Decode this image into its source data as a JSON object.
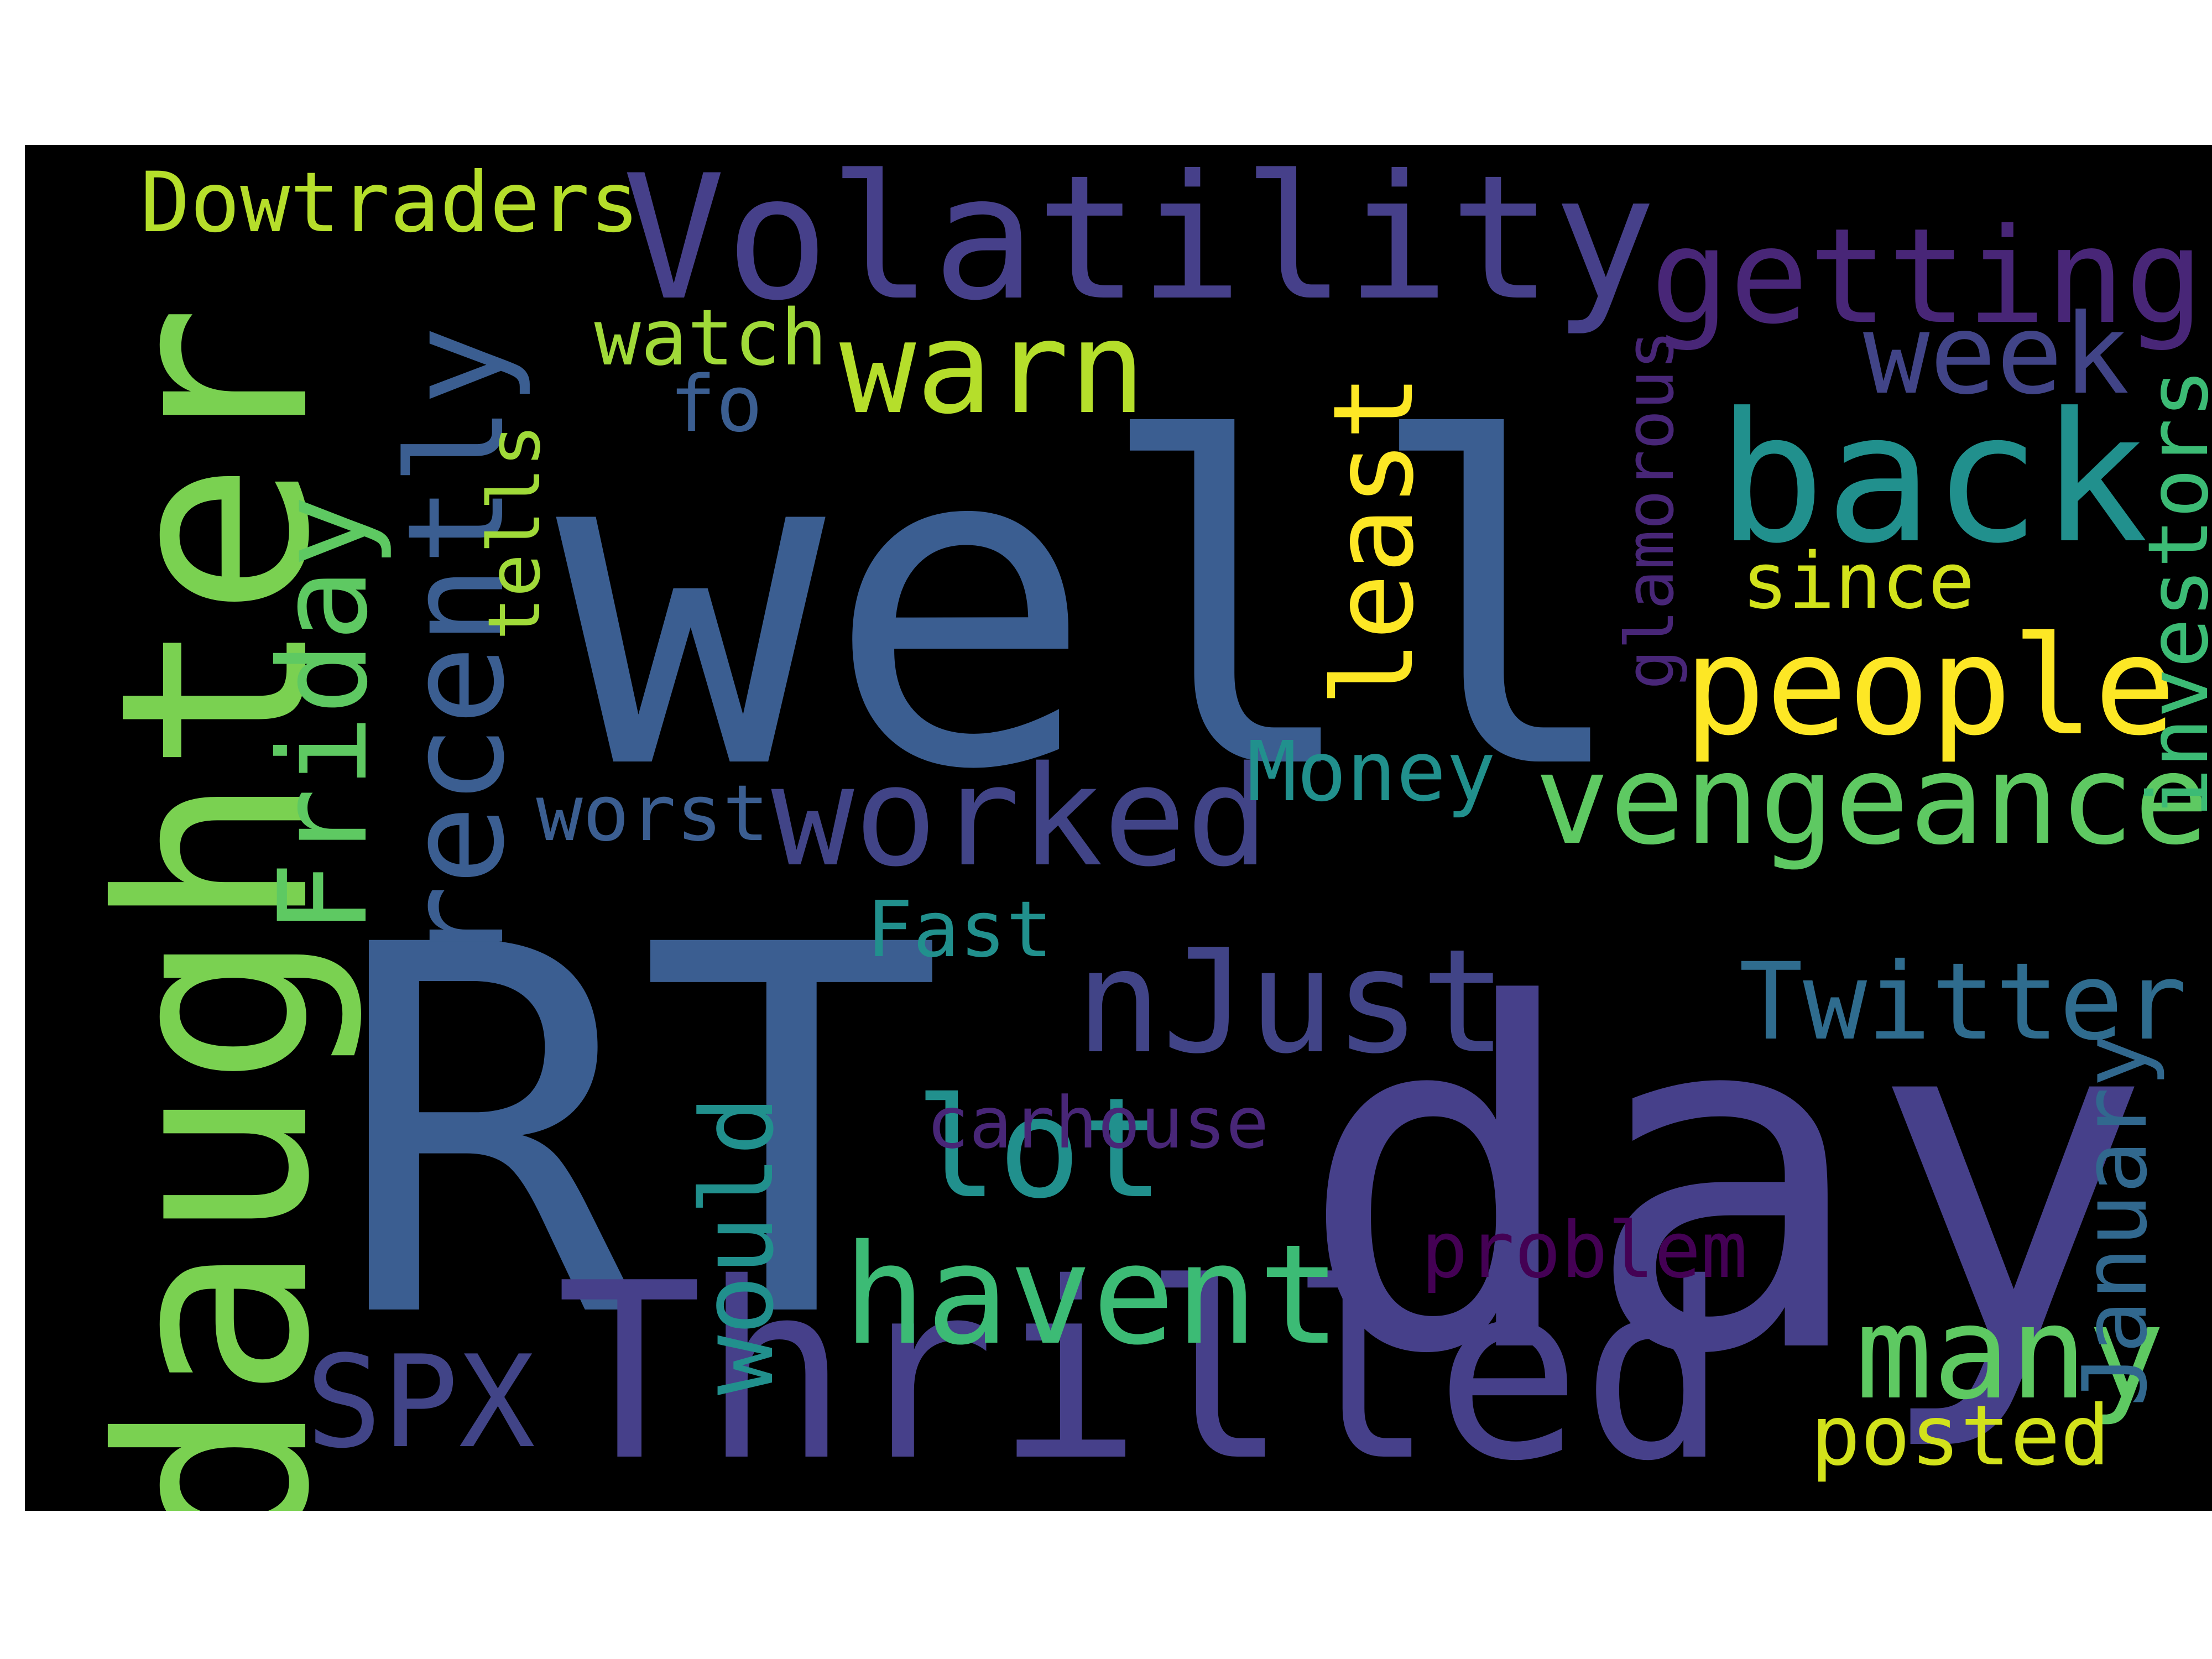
{
  "words": [
    {
      "key": "well",
      "text": "well",
      "color": "#3b5e91",
      "rotated": false
    },
    {
      "key": "RT",
      "text": "RT",
      "color": "#3b5e91",
      "rotated": false
    },
    {
      "key": "day",
      "text": "day",
      "color": "#46408a",
      "rotated": false
    },
    {
      "key": "Thrilled",
      "text": "Thrilled",
      "color": "#46408a",
      "rotated": false
    },
    {
      "key": "daughter",
      "text": "daughter",
      "color": "#7ad151",
      "rotated": true
    },
    {
      "key": "Volatility",
      "text": "Volatility",
      "color": "#46408a",
      "rotated": false
    },
    {
      "key": "getting",
      "text": "getting",
      "color": "#482677",
      "rotated": false
    },
    {
      "key": "back",
      "text": "back",
      "color": "#21908d",
      "rotated": false
    },
    {
      "key": "people",
      "text": "people",
      "color": "#fde725",
      "rotated": false
    },
    {
      "key": "vengeance",
      "text": "vengeance",
      "color": "#5ec962",
      "rotated": false
    },
    {
      "key": "worked",
      "text": "worked",
      "color": "#414487",
      "rotated": false
    },
    {
      "key": "recently",
      "text": "recently",
      "color": "#3b5e91",
      "rotated": true
    },
    {
      "key": "Friday",
      "text": "Friday",
      "color": "#5ec962",
      "rotated": true
    },
    {
      "key": "warn",
      "text": "warn",
      "color": "#b5de2b",
      "rotated": false
    },
    {
      "key": "week",
      "text": "week",
      "color": "#414487",
      "rotated": false
    },
    {
      "key": "least",
      "text": "least",
      "color": "#fde725",
      "rotated": true
    },
    {
      "key": "nJust",
      "text": "nJust",
      "color": "#414487",
      "rotated": false
    },
    {
      "key": "Twitter",
      "text": "Twitter",
      "color": "#2f6c8e",
      "rotated": false
    },
    {
      "key": "lot",
      "text": "lot",
      "color": "#21908d",
      "rotated": false
    },
    {
      "key": "havent",
      "text": "havent",
      "color": "#3cbb75",
      "rotated": false
    },
    {
      "key": "many",
      "text": "many",
      "color": "#5ec962",
      "rotated": false
    },
    {
      "key": "SPX",
      "text": "SPX",
      "color": "#414487",
      "rotated": false
    },
    {
      "key": "would",
      "text": "would",
      "color": "#21908d",
      "rotated": true
    },
    {
      "key": "investors",
      "text": "investors",
      "color": "#3cbb75",
      "rotated": true
    },
    {
      "key": "January",
      "text": "January",
      "color": "#31688e",
      "rotated": true
    },
    {
      "key": "Dowtraders",
      "text": "Dowtraders",
      "color": "#b5de2b",
      "rotated": false
    },
    {
      "key": "watch",
      "text": "watch",
      "color": "#a0da39",
      "rotated": false
    },
    {
      "key": "tells",
      "text": "tells",
      "color": "#a0da39",
      "rotated": true
    },
    {
      "key": "fo",
      "text": "fo",
      "color": "#3b5e91",
      "rotated": false
    },
    {
      "key": "since",
      "text": "since",
      "color": "#d2e21b",
      "rotated": false
    },
    {
      "key": "Money",
      "text": "Money",
      "color": "#21908d",
      "rotated": false
    },
    {
      "key": "worst",
      "text": "worst",
      "color": "#3b5e91",
      "rotated": false
    },
    {
      "key": "Fast",
      "text": "Fast",
      "color": "#21908d",
      "rotated": false
    },
    {
      "key": "carhouse",
      "text": "carhouse",
      "color": "#482677",
      "rotated": false
    },
    {
      "key": "problem",
      "text": "problem",
      "color": "#440154",
      "rotated": false
    },
    {
      "key": "posted",
      "text": "posted",
      "color": "#d2e21b",
      "rotated": false
    },
    {
      "key": "glamorous",
      "text": "glamorous",
      "color": "#482677",
      "rotated": true
    }
  ]
}
